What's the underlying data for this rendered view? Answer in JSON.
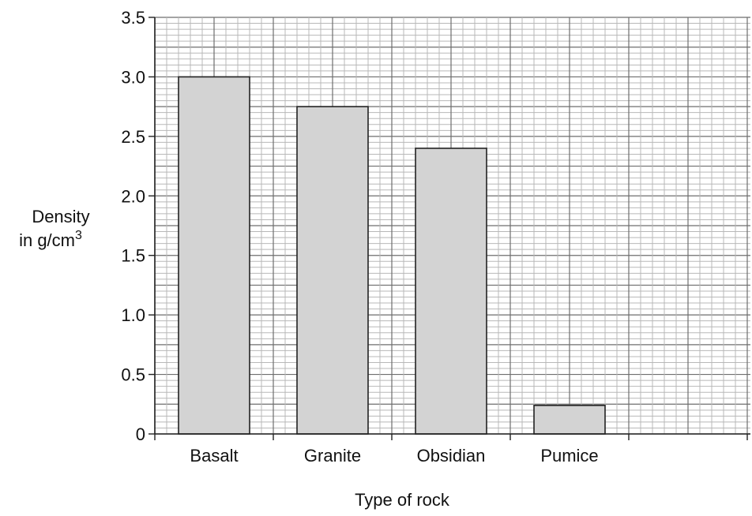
{
  "chart_data": {
    "type": "bar",
    "title": "",
    "xlabel": "Type of rock",
    "ylabel": "Density in g/cm3",
    "ylabel_lines": [
      "Density",
      "in g/cm",
      "3"
    ],
    "categories": [
      "Basalt",
      "Granite",
      "Obsidian",
      "Pumice"
    ],
    "values": [
      3.0,
      2.75,
      2.4,
      0.24
    ],
    "ylim": [
      0,
      3.5
    ],
    "yticks": [
      "0",
      "0.5",
      "1.0",
      "1.5",
      "2.0",
      "2.5",
      "3.0",
      "3.5"
    ],
    "grid": true,
    "legend": "none"
  }
}
